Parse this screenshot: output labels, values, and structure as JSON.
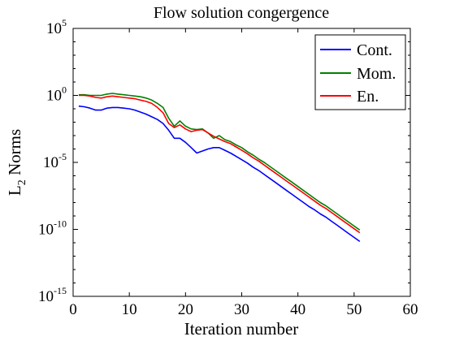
{
  "chart_data": {
    "type": "line",
    "title": "Flow solution congergence",
    "xlabel": "Iteration number",
    "ylabel_main": "L",
    "ylabel_sub": "2",
    "ylabel_rest": " Norms",
    "xlim": [
      0,
      60
    ],
    "ylim_exp": [
      -15,
      5
    ],
    "yscale": "log",
    "x_ticks": [
      0,
      10,
      20,
      30,
      40,
      50,
      60
    ],
    "y_tick_exponents": [
      -15,
      -10,
      -5,
      0,
      5
    ],
    "y_tick_base": "10",
    "grid": false,
    "legend_position": "top-right",
    "series": [
      {
        "name": "Cont.",
        "color": "#0000ff",
        "x": [
          1,
          2,
          3,
          4,
          5,
          6,
          7,
          8,
          9,
          10,
          11,
          12,
          13,
          14,
          15,
          16,
          17,
          18,
          19,
          20,
          21,
          22,
          23,
          24,
          25,
          26,
          27,
          28,
          29,
          30,
          31,
          32,
          33,
          34,
          35,
          36,
          37,
          38,
          39,
          40,
          41,
          42,
          43,
          44,
          45,
          46,
          47,
          48,
          49,
          50,
          51
        ],
        "log10_y": [
          -0.8,
          -0.85,
          -0.95,
          -1.1,
          -1.1,
          -0.95,
          -0.9,
          -0.9,
          -0.95,
          -1.0,
          -1.1,
          -1.25,
          -1.4,
          -1.6,
          -1.8,
          -2.1,
          -2.6,
          -3.2,
          -3.2,
          -3.5,
          -3.9,
          -4.3,
          -4.15,
          -4.0,
          -3.9,
          -3.9,
          -4.1,
          -4.3,
          -4.55,
          -4.8,
          -5.05,
          -5.35,
          -5.6,
          -5.9,
          -6.2,
          -6.5,
          -6.8,
          -7.1,
          -7.4,
          -7.7,
          -8.0,
          -8.3,
          -8.55,
          -8.85,
          -9.1,
          -9.4,
          -9.7,
          -10.0,
          -10.3,
          -10.6,
          -10.9
        ]
      },
      {
        "name": "Mom.",
        "color": "#008000",
        "x": [
          1,
          2,
          3,
          4,
          5,
          6,
          7,
          8,
          9,
          10,
          11,
          12,
          13,
          14,
          15,
          16,
          17,
          18,
          19,
          20,
          21,
          22,
          23,
          24,
          25,
          26,
          27,
          28,
          29,
          30,
          31,
          32,
          33,
          34,
          35,
          36,
          37,
          38,
          39,
          40,
          41,
          42,
          43,
          44,
          45,
          46,
          47,
          48,
          49,
          50,
          51
        ],
        "log10_y": [
          0.05,
          0.05,
          0.0,
          0.0,
          0.0,
          0.1,
          0.15,
          0.1,
          0.05,
          0.0,
          -0.05,
          -0.1,
          -0.2,
          -0.35,
          -0.6,
          -0.9,
          -1.7,
          -2.3,
          -1.9,
          -2.3,
          -2.5,
          -2.55,
          -2.5,
          -2.8,
          -3.2,
          -3.0,
          -3.3,
          -3.45,
          -3.7,
          -3.9,
          -4.2,
          -4.45,
          -4.75,
          -5.0,
          -5.3,
          -5.6,
          -5.9,
          -6.2,
          -6.5,
          -6.8,
          -7.1,
          -7.4,
          -7.7,
          -8.0,
          -8.25,
          -8.55,
          -8.85,
          -9.15,
          -9.45,
          -9.75,
          -10.05
        ]
      },
      {
        "name": "En.",
        "color": "#ff0000",
        "x": [
          1,
          2,
          3,
          4,
          5,
          6,
          7,
          8,
          9,
          10,
          11,
          12,
          13,
          14,
          15,
          16,
          17,
          18,
          19,
          20,
          21,
          22,
          23,
          24,
          25,
          26,
          27,
          28,
          29,
          30,
          31,
          32,
          33,
          34,
          35,
          36,
          37,
          38,
          39,
          40,
          41,
          42,
          43,
          44,
          45,
          46,
          47,
          48,
          49,
          50,
          51
        ],
        "log10_y": [
          0.0,
          0.0,
          -0.05,
          -0.15,
          -0.2,
          -0.1,
          -0.05,
          -0.1,
          -0.15,
          -0.2,
          -0.25,
          -0.35,
          -0.45,
          -0.6,
          -0.9,
          -1.3,
          -2.1,
          -2.4,
          -2.2,
          -2.5,
          -2.7,
          -2.6,
          -2.55,
          -2.8,
          -3.05,
          -3.25,
          -3.45,
          -3.6,
          -3.85,
          -4.1,
          -4.35,
          -4.65,
          -4.9,
          -5.2,
          -5.5,
          -5.8,
          -6.1,
          -6.4,
          -6.7,
          -7.0,
          -7.3,
          -7.6,
          -7.9,
          -8.2,
          -8.45,
          -8.75,
          -9.05,
          -9.35,
          -9.65,
          -9.95,
          -10.25
        ]
      }
    ]
  }
}
